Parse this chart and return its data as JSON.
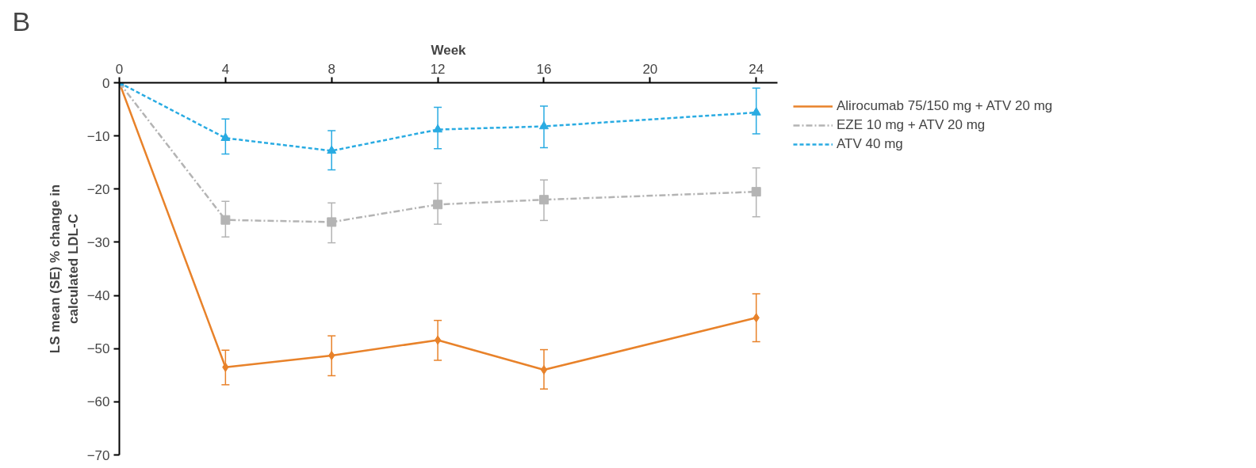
{
  "chart_data": {
    "type": "line",
    "title": "B",
    "xlabel": "Week",
    "ylabel": "LS mean (SE) % change in\ncalculated LDL-C",
    "x": [
      0,
      4,
      8,
      12,
      16,
      24
    ],
    "series": [
      {
        "name": "Alirocumab 75/150 mg + ATV 20 mg",
        "color": "#e8822a",
        "marker": "diamond",
        "line_style": "solid",
        "values": [
          0,
          -53.5,
          -51.3,
          -48.4,
          -54.0,
          -44.2
        ],
        "errors": [
          null,
          [
            -56.8,
            -50.3
          ],
          [
            -55.1,
            -47.6
          ],
          [
            -52.2,
            -44.7
          ],
          [
            -57.6,
            -50.2
          ],
          [
            -48.7,
            -39.7
          ]
        ]
      },
      {
        "name": "EZE 10 mg + ATV 20 mg",
        "color": "#b4b4b4",
        "marker": "square",
        "line_style": "dashdot",
        "values": [
          0,
          -25.8,
          -26.2,
          -22.9,
          -22.0,
          -20.5
        ],
        "errors": [
          null,
          [
            -29.0,
            -22.3
          ],
          [
            -30.1,
            -22.6
          ],
          [
            -26.6,
            -18.9
          ],
          [
            -25.9,
            -18.3
          ],
          [
            -25.2,
            -16.0
          ]
        ]
      },
      {
        "name": "ATV 40 mg",
        "color": "#29abe2",
        "marker": "triangle",
        "line_style": "dashed",
        "values": [
          0,
          -10.4,
          -12.8,
          -8.8,
          -8.2,
          -5.6
        ],
        "errors": [
          null,
          [
            -13.4,
            -6.8
          ],
          [
            -16.4,
            -9.0
          ],
          [
            -12.4,
            -4.6
          ],
          [
            -12.2,
            -4.4
          ],
          [
            -9.6,
            -1.0
          ]
        ]
      }
    ],
    "xlim": [
      0,
      24.8
    ],
    "xticks": [
      0,
      4,
      8,
      12,
      16,
      20,
      24
    ],
    "ylim": [
      -70,
      0
    ],
    "yticks": [
      0,
      -10,
      -20,
      -30,
      -40,
      -50,
      -60,
      -70
    ],
    "grid": false,
    "legend": "top right"
  }
}
